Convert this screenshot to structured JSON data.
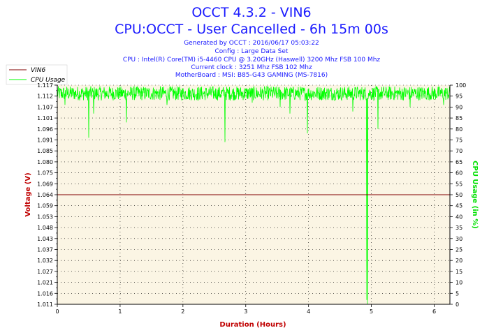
{
  "chart_data": {
    "type": "line",
    "title": "OCCT 4.3.2 - VIN6",
    "subtitle": "CPU:OCCT - User Cancelled - 6h 15m 00s",
    "info_lines": [
      "Generated by OCCT : 2016/06/17 05:03:22",
      "Config : Large Data Set",
      "CPU : Intel(R) Core(TM) i5-4460 CPU @ 3.20GHz (Haswell) 3200 Mhz FSB 100 Mhz",
      "Current clock : 3251 Mhz FSB 102 Mhz",
      "MotherBoard : MSI: B85-G43 GAMING (MS-7816)"
    ],
    "xlabel": "Duration (Hours)",
    "ylabel_left": "Voltage (V)",
    "ylabel_right": "CPU Usage (in %)",
    "xlim": [
      0,
      6.25
    ],
    "ylim_left": [
      1.011,
      1.117
    ],
    "ylim_right": [
      0,
      100
    ],
    "x_ticks": [
      "0",
      "1",
      "2",
      "3",
      "4",
      "5",
      "6"
    ],
    "y_left_ticks": [
      "1.011",
      "1.016",
      "1.021",
      "1.027",
      "1.032",
      "1.037",
      "1.043",
      "1.048",
      "1.053",
      "1.059",
      "1.064",
      "1.069",
      "1.075",
      "1.080",
      "1.085",
      "1.091",
      "1.096",
      "1.101",
      "1.107",
      "1.112",
      "1.117"
    ],
    "y_right_ticks": [
      "0",
      "5",
      "10",
      "15",
      "20",
      "25",
      "30",
      "35",
      "40",
      "45",
      "50",
      "55",
      "60",
      "65",
      "70",
      "75",
      "80",
      "85",
      "90",
      "95",
      "100"
    ],
    "grid": true,
    "legend_position": "top-left",
    "series": [
      {
        "name": "VIN6",
        "axis": "left",
        "color": "#800000",
        "x": [
          0,
          6.25
        ],
        "y": [
          1.064,
          1.064
        ]
      },
      {
        "name": "CPU Usage",
        "axis": "right",
        "color": "#00ff00",
        "baseline_range": [
          93,
          99.5
        ],
        "dips": [
          {
            "x": 0.12,
            "y": 91
          },
          {
            "x": 0.5,
            "y": 76
          },
          {
            "x": 0.58,
            "y": 87
          },
          {
            "x": 1.1,
            "y": 83
          },
          {
            "x": 1.75,
            "y": 91
          },
          {
            "x": 2.25,
            "y": 93
          },
          {
            "x": 2.67,
            "y": 74
          },
          {
            "x": 3.1,
            "y": 92
          },
          {
            "x": 3.55,
            "y": 90
          },
          {
            "x": 3.7,
            "y": 87
          },
          {
            "x": 3.98,
            "y": 78
          },
          {
            "x": 4.7,
            "y": 88
          },
          {
            "x": 4.93,
            "y": 2
          },
          {
            "x": 4.94,
            "y": 0
          },
          {
            "x": 5.1,
            "y": 80
          },
          {
            "x": 5.62,
            "y": 90
          },
          {
            "x": 6.15,
            "y": 91
          }
        ]
      }
    ]
  },
  "colors": {
    "plot_background": "#fbf5e4",
    "title": "#1a1aff",
    "axis_label": "#c00000",
    "cpu_axis_label": "#00e000"
  }
}
